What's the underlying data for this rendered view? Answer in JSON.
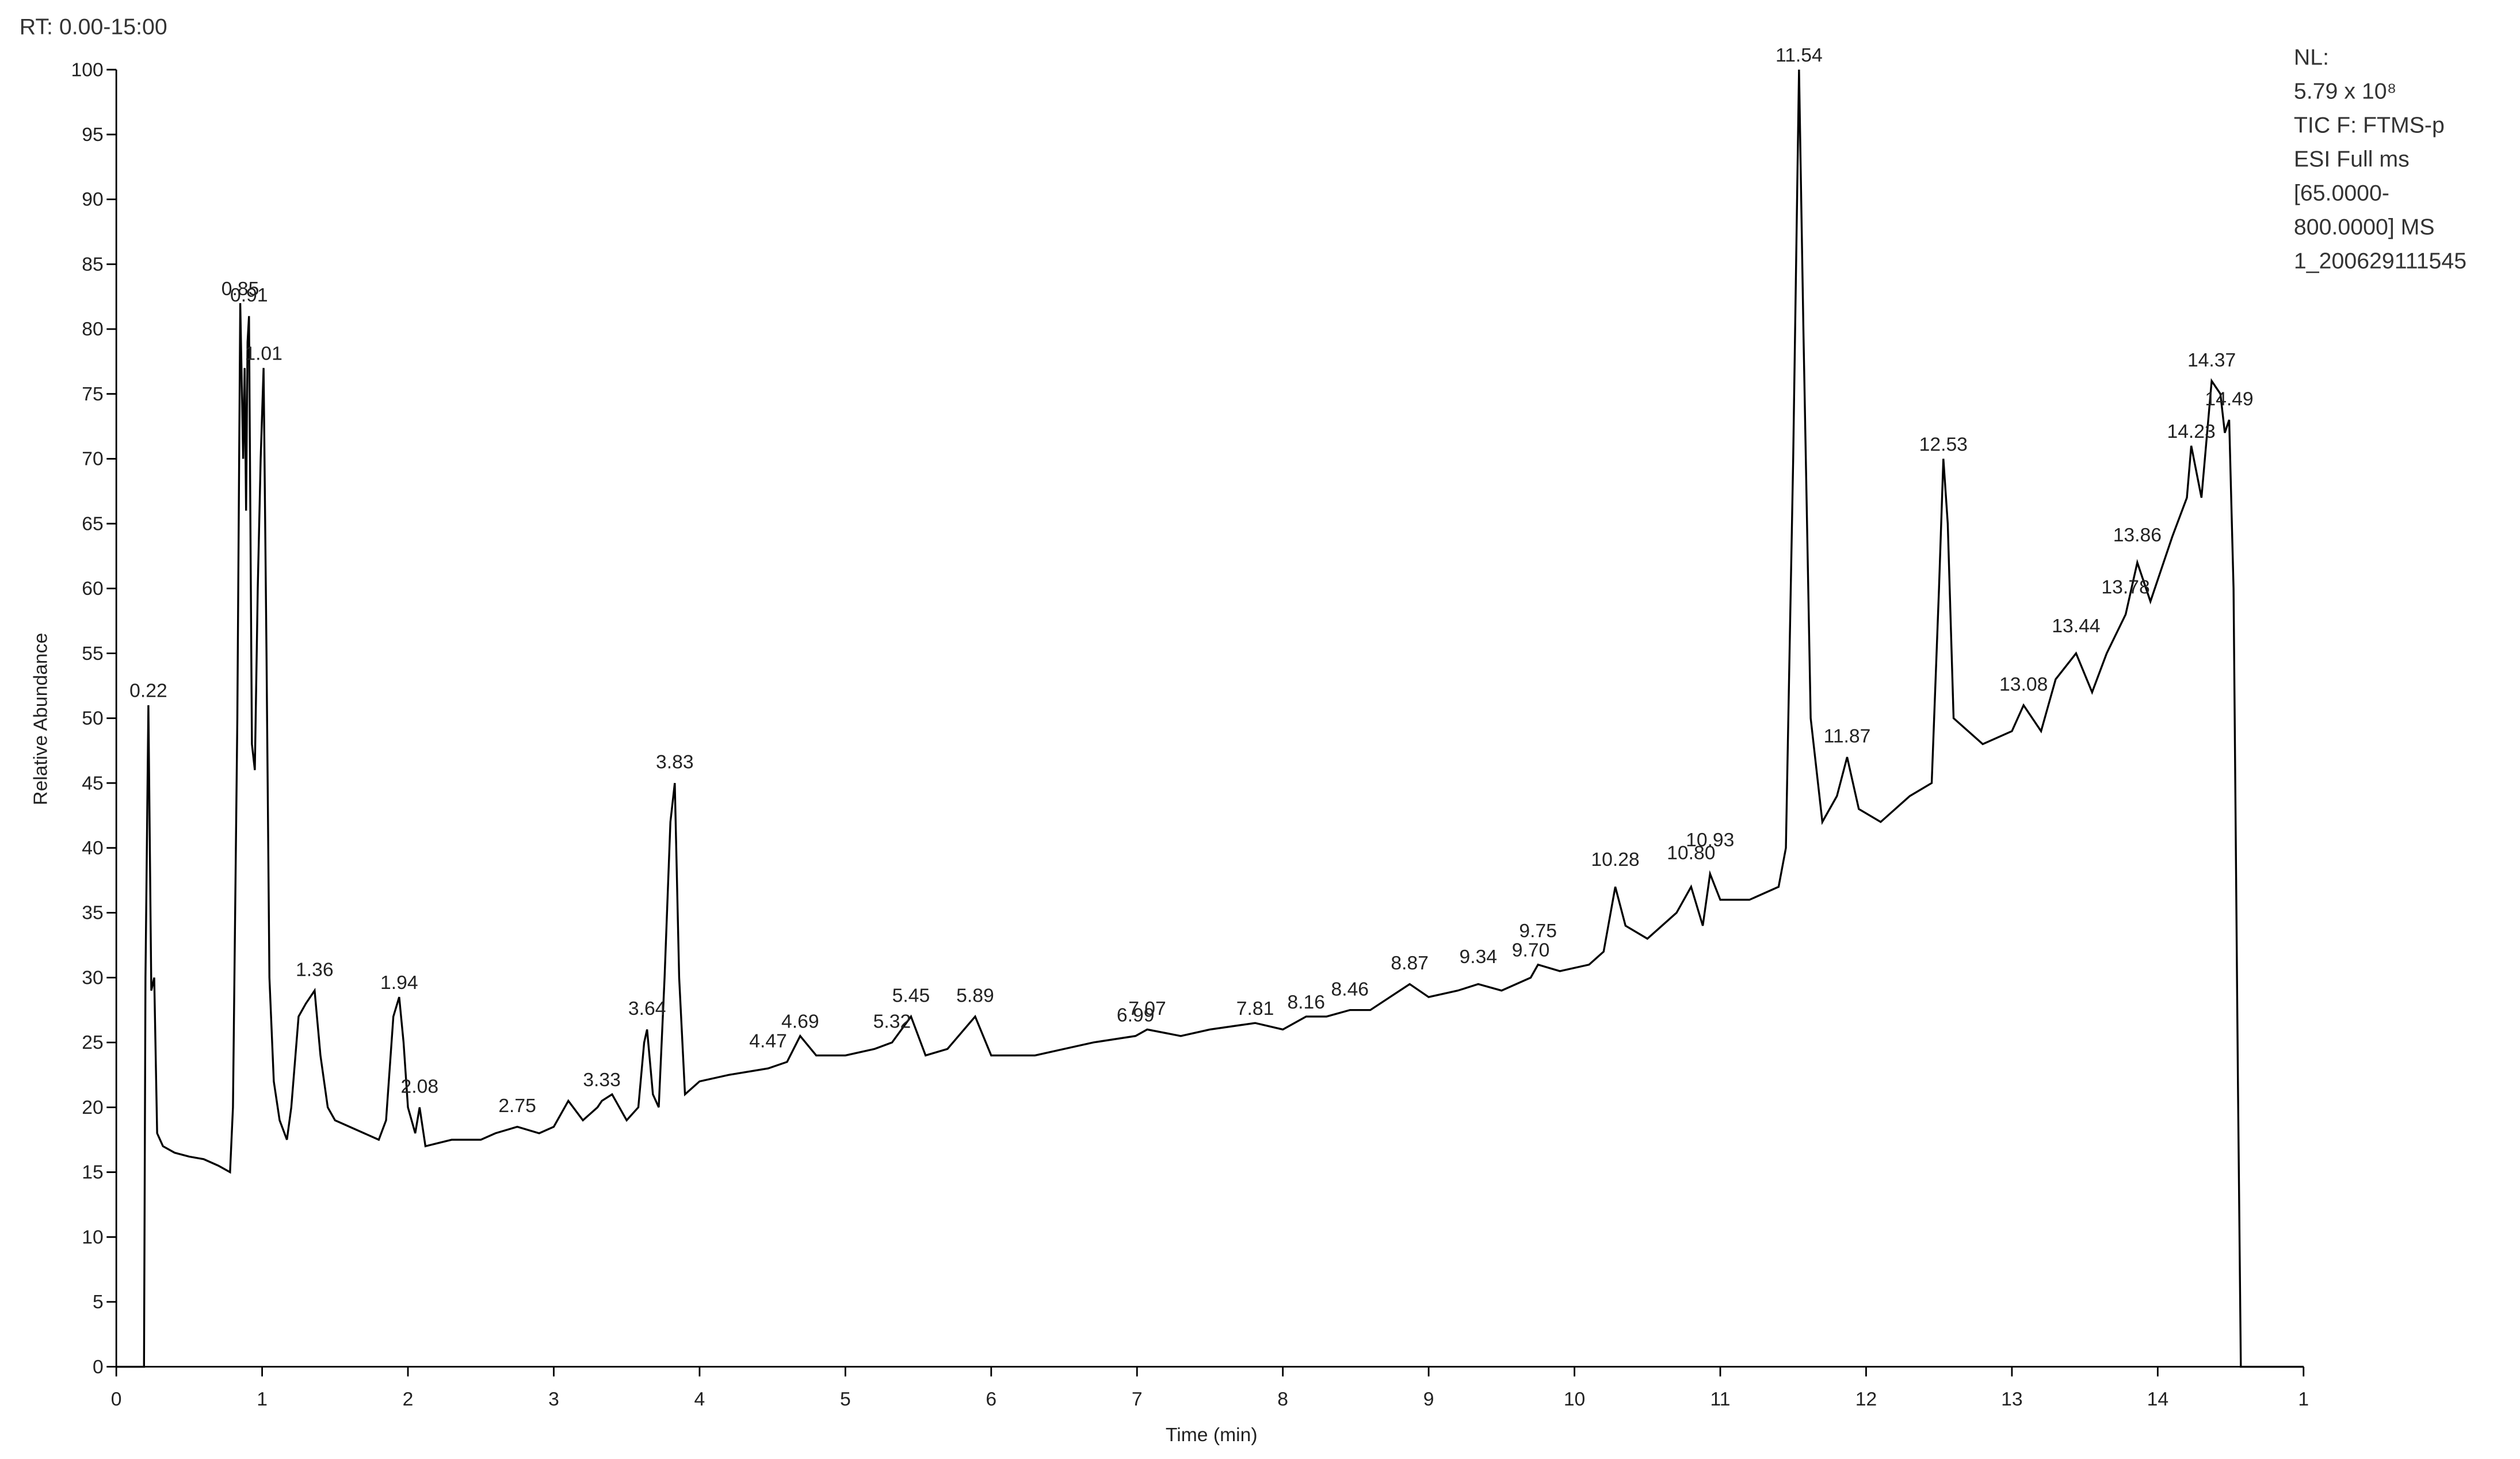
{
  "chart_data": {
    "type": "line",
    "range_text": "RT: 0.00-15:00",
    "info_lines": [
      "NL:",
      "5.79 x 10⁸",
      "TIC F: FTMS-p",
      "ESI Full ms",
      "[65.0000-",
      "800.0000] MS",
      "1_200629111545"
    ],
    "xlabel": "Time (min)",
    "ylabel": "Relative Abundance",
    "xlim": [
      0,
      15
    ],
    "ylim": [
      0,
      100
    ],
    "xticks": [
      0,
      1,
      2,
      3,
      4,
      5,
      6,
      7,
      8,
      9,
      10,
      11,
      12,
      13,
      14,
      {
        "value": 15,
        "label": "1"
      }
    ],
    "yticks": [
      0,
      5,
      10,
      15,
      20,
      25,
      30,
      35,
      40,
      45,
      50,
      55,
      60,
      65,
      70,
      75,
      80,
      85,
      90,
      95,
      100
    ],
    "series": [
      {
        "color": "#000000",
        "x": [
          0,
          0.19,
          0.2,
          0.22,
          0.24,
          0.26,
          0.28,
          0.32,
          0.4,
          0.5,
          0.6,
          0.7,
          0.78,
          0.8,
          0.83,
          0.85,
          0.87,
          0.88,
          0.89,
          0.9,
          0.91,
          0.93,
          0.95,
          0.97,
          0.99,
          1.01,
          1.03,
          1.05,
          1.08,
          1.12,
          1.17,
          1.2,
          1.25,
          1.3,
          1.36,
          1.4,
          1.45,
          1.5,
          1.6,
          1.7,
          1.8,
          1.85,
          1.9,
          1.94,
          1.97,
          2.0,
          2.05,
          2.08,
          2.12,
          2.3,
          2.5,
          2.6,
          2.75,
          2.9,
          3.0,
          3.1,
          3.2,
          3.3,
          3.33,
          3.4,
          3.5,
          3.58,
          3.62,
          3.64,
          3.68,
          3.72,
          3.76,
          3.8,
          3.83,
          3.86,
          3.9,
          4.0,
          4.2,
          4.47,
          4.6,
          4.69,
          4.8,
          5.0,
          5.2,
          5.32,
          5.45,
          5.55,
          5.7,
          5.89,
          6.0,
          6.3,
          6.5,
          6.7,
          6.99,
          7.07,
          7.3,
          7.5,
          7.81,
          8.0,
          8.16,
          8.3,
          8.46,
          8.6,
          8.87,
          9.0,
          9.2,
          9.34,
          9.5,
          9.7,
          9.75,
          9.9,
          10.1,
          10.2,
          10.28,
          10.35,
          10.5,
          10.7,
          10.8,
          10.88,
          10.93,
          11.0,
          11.2,
          11.4,
          11.45,
          11.5,
          11.54,
          11.57,
          11.62,
          11.7,
          11.8,
          11.87,
          11.95,
          12.1,
          12.3,
          12.45,
          12.5,
          12.53,
          12.56,
          12.6,
          12.8,
          13.0,
          13.08,
          13.2,
          13.3,
          13.44,
          13.55,
          13.65,
          13.78,
          13.86,
          13.95,
          14.1,
          14.2,
          14.23,
          14.3,
          14.37,
          14.43,
          14.46,
          14.49,
          14.52,
          14.55,
          14.57,
          15
        ],
        "values": [
          0,
          0,
          30,
          51,
          29,
          30,
          18,
          17,
          16.5,
          16.2,
          16,
          15.5,
          15,
          20,
          50,
          82,
          70,
          77,
          66,
          79,
          81,
          48,
          46,
          60,
          70,
          77,
          55,
          30,
          22,
          19,
          17.5,
          20,
          27,
          28,
          29,
          24,
          20,
          19,
          18.5,
          18,
          17.5,
          19,
          27,
          28.5,
          25,
          20,
          18,
          20,
          17,
          17.5,
          17.5,
          18,
          18.5,
          18,
          18.5,
          20.5,
          19,
          20,
          20.5,
          21,
          19,
          20,
          25,
          26,
          21,
          20,
          30,
          42,
          45,
          30,
          21,
          22,
          22.5,
          23,
          23.5,
          25.5,
          24,
          24,
          24.5,
          25,
          27,
          24,
          24.5,
          27,
          24,
          24,
          24.5,
          25,
          25.5,
          26,
          25.5,
          26,
          26.5,
          26,
          27,
          27,
          27.5,
          27.5,
          29.5,
          28.5,
          29,
          29.5,
          29,
          30,
          31,
          30.5,
          31,
          32,
          37,
          34,
          33,
          35,
          37,
          34,
          38,
          36,
          36,
          37,
          40,
          70,
          100,
          80,
          50,
          42,
          44,
          47,
          43,
          42,
          44,
          45,
          60,
          70,
          65,
          50,
          48,
          49,
          51,
          49,
          53,
          55,
          52,
          55,
          58,
          62,
          59,
          64,
          67,
          71,
          67,
          76,
          75,
          72,
          73,
          60,
          22,
          0,
          0
        ]
      }
    ],
    "peak_labels": [
      "0.22",
      "0.85",
      "0.91",
      "1.01",
      "1.36",
      "1.94",
      "2.08",
      "2.75",
      "3.33",
      "3.64",
      "3.83",
      "4.47",
      "4.69",
      "5.32",
      "5.45",
      "5.89",
      "6.99",
      "7.07",
      "7.81",
      "8.16",
      "8.46",
      "8.87",
      "9.34",
      "9.70",
      "9.75",
      "10.28",
      "10.80",
      "10.93",
      "11.54",
      "11.87",
      "12.53",
      "13.08",
      "13.44",
      "13.78",
      "13.86",
      "14.23",
      "14.37",
      "14.49"
    ],
    "peak_x": [
      0.22,
      0.85,
      0.91,
      1.01,
      1.36,
      1.94,
      2.08,
      2.75,
      3.33,
      3.64,
      3.83,
      4.47,
      4.69,
      5.32,
      5.45,
      5.89,
      6.99,
      7.07,
      7.81,
      8.16,
      8.46,
      8.87,
      9.34,
      9.7,
      9.75,
      10.28,
      10.8,
      10.93,
      11.54,
      11.87,
      12.53,
      13.08,
      13.44,
      13.78,
      13.86,
      14.23,
      14.37,
      14.49
    ],
    "peak_y": [
      51,
      82,
      81.5,
      77,
      29.5,
      28.5,
      20.5,
      19,
      21,
      26.5,
      45.5,
      24,
      25.5,
      25.5,
      27.5,
      27.5,
      26,
      26.5,
      26.5,
      27,
      28,
      30,
      30.5,
      31,
      32.5,
      38,
      38.5,
      39.5,
      100,
      47.5,
      70,
      51.5,
      56,
      59,
      63,
      71,
      76.5,
      73.5
    ]
  }
}
